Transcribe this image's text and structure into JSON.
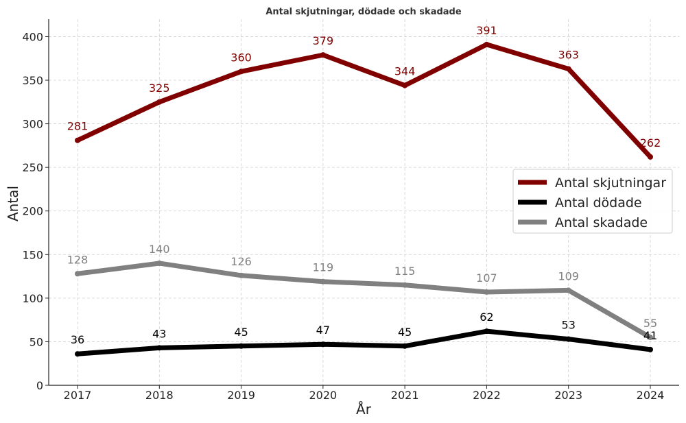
{
  "chart_data": {
    "type": "line",
    "title": "Antal skjutningar, dödade och skadade",
    "xlabel": "År",
    "ylabel": "Antal",
    "x": [
      "2017",
      "2018",
      "2019",
      "2020",
      "2021",
      "2022",
      "2023",
      "2024"
    ],
    "ylim": [
      0,
      420
    ],
    "yticks": [
      "0",
      "50",
      "100",
      "150",
      "200",
      "250",
      "300",
      "350",
      "400"
    ],
    "grid": true,
    "legend_position": "right",
    "series": [
      {
        "name": "Antal skjutningar",
        "color": "#800000",
        "values": [
          281,
          325,
          360,
          379,
          344,
          391,
          363,
          262
        ]
      },
      {
        "name": "Antal dödade",
        "color": "#000000",
        "values": [
          36,
          43,
          45,
          47,
          45,
          62,
          53,
          41
        ]
      },
      {
        "name": "Antal skadade",
        "color": "#808080",
        "values": [
          128,
          140,
          126,
          119,
          115,
          107,
          109,
          55
        ]
      }
    ]
  }
}
